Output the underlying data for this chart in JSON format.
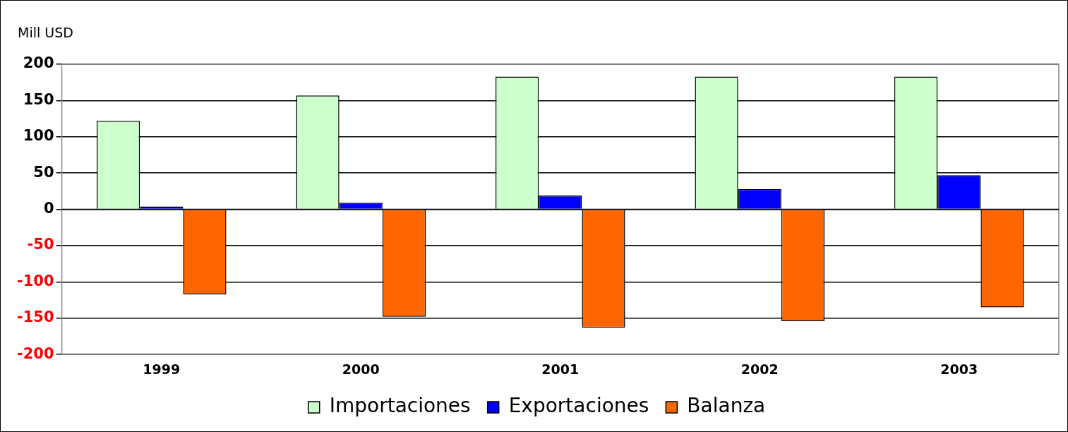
{
  "chart_data": {
    "type": "bar",
    "ylabel": "Mill USD",
    "categories": [
      "1999",
      "2000",
      "2001",
      "2002",
      "2003"
    ],
    "series": [
      {
        "name": "Importaciones",
        "color": "#ccffcc",
        "values": [
          122,
          157,
          183,
          183,
          183
        ]
      },
      {
        "name": "Exportaciones",
        "color": "#0000ff",
        "values": [
          4,
          9,
          19,
          28,
          47
        ]
      },
      {
        "name": "Balanza",
        "color": "#ff6600",
        "values": [
          -117,
          -148,
          -163,
          -154,
          -135
        ]
      }
    ],
    "ylim": [
      -200,
      200
    ],
    "yticks": [
      -200,
      -150,
      -100,
      -50,
      0,
      50,
      100,
      150,
      200
    ],
    "grid": "y",
    "legend": "bottom"
  }
}
